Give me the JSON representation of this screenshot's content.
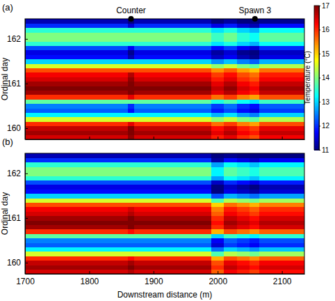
{
  "chart_data": [
    {
      "type": "heatmap",
      "title": "(a)",
      "y_label": "Ordinal day",
      "tick_labels": "y",
      "xlim": [
        1700,
        2135
      ],
      "ylim": [
        159.75,
        162.45
      ],
      "xticks": [
        1700,
        1800,
        1900,
        2000,
        2100
      ],
      "yticks": [
        160,
        161,
        162
      ],
      "annotations": [
        {
          "text": "Counter",
          "x": 1865
        },
        {
          "text": "Spawn 3",
          "x": 2058
        }
      ],
      "colorbar": {
        "label": "Temperature (°C)",
        "range": [
          11,
          17
        ],
        "ticks": [
          11,
          12,
          13,
          14,
          15,
          16,
          17
        ]
      },
      "x_edges": [
        1700,
        1860,
        1870,
        1990,
        2010,
        2030,
        2050,
        2065,
        2135
      ],
      "y_edges": [
        159.75,
        159.85,
        159.95,
        160.05,
        160.15,
        160.25,
        160.35,
        160.45,
        160.55,
        160.65,
        160.75,
        160.85,
        160.95,
        161.05,
        161.15,
        161.25,
        161.35,
        161.45,
        161.55,
        161.65,
        161.75,
        161.85,
        161.95,
        162.05,
        162.15,
        162.25,
        162.35,
        162.45
      ],
      "z": [
        [
          16.5,
          16.9,
          16.5,
          16.1,
          16.4,
          16.0,
          15.8,
          16.3
        ],
        [
          16.8,
          17.2,
          16.8,
          16.4,
          16.7,
          16.3,
          16.1,
          16.6
        ],
        [
          16.6,
          17.0,
          16.6,
          16.2,
          16.5,
          16.1,
          15.9,
          16.4
        ],
        [
          16.0,
          16.4,
          16.0,
          15.6,
          15.9,
          15.5,
          15.3,
          15.8
        ],
        [
          14.5,
          14.5,
          14.5,
          14.1,
          14.4,
          14.0,
          13.8,
          14.3
        ],
        [
          13.2,
          13.2,
          13.2,
          12.8,
          13.1,
          12.7,
          12.5,
          13.0
        ],
        [
          12.3,
          11.8,
          12.3,
          11.9,
          12.2,
          11.8,
          11.6,
          12.1
        ],
        [
          12.5,
          12.0,
          12.5,
          12.1,
          12.4,
          12.0,
          11.8,
          12.3
        ],
        [
          13.8,
          13.8,
          13.8,
          13.4,
          13.7,
          13.3,
          13.1,
          13.6
        ],
        [
          16.0,
          16.4,
          16.0,
          15.6,
          15.9,
          15.5,
          15.3,
          15.8
        ],
        [
          16.8,
          17.2,
          16.8,
          16.4,
          16.7,
          16.3,
          16.1,
          16.6
        ],
        [
          17.0,
          17.2,
          17.0,
          16.6,
          16.9,
          16.5,
          16.3,
          16.8
        ],
        [
          16.8,
          17.2,
          16.8,
          16.4,
          16.7,
          16.3,
          16.1,
          16.6
        ],
        [
          16.5,
          16.9,
          16.5,
          16.1,
          16.4,
          16.0,
          15.8,
          16.3
        ],
        [
          16.3,
          16.7,
          16.3,
          15.9,
          16.2,
          15.8,
          15.6,
          16.1
        ],
        [
          15.8,
          15.8,
          15.8,
          15.4,
          15.7,
          15.3,
          15.1,
          15.6
        ],
        [
          14.5,
          14.5,
          14.5,
          14.1,
          14.4,
          14.0,
          13.8,
          14.3
        ],
        [
          13.0,
          13.0,
          13.0,
          12.6,
          12.9,
          12.5,
          12.3,
          12.8
        ],
        [
          11.8,
          11.3,
          11.8,
          11.4,
          11.7,
          11.3,
          11.1,
          11.6
        ],
        [
          11.6,
          11.1,
          11.6,
          11.2,
          11.5,
          11.1,
          11.0,
          11.4
        ],
        [
          12.2,
          11.7,
          12.2,
          11.8,
          12.1,
          11.7,
          11.5,
          12.0
        ],
        [
          13.5,
          13.5,
          13.5,
          13.1,
          13.4,
          13.0,
          12.8,
          13.3
        ],
        [
          14.0,
          14.0,
          14.0,
          13.6,
          13.9,
          13.5,
          13.3,
          13.8
        ],
        [
          14.0,
          14.0,
          14.0,
          13.6,
          13.9,
          13.5,
          13.3,
          13.8
        ],
        [
          13.5,
          13.5,
          13.5,
          13.1,
          13.4,
          13.0,
          12.8,
          13.3
        ],
        [
          12.0,
          11.5,
          12.0,
          11.6,
          11.9,
          11.5,
          11.3,
          11.8
        ],
        [
          11.3,
          11.0,
          11.3,
          11.0,
          11.2,
          11.0,
          11.0,
          11.1
        ]
      ]
    },
    {
      "type": "heatmap",
      "title": "(b)",
      "y_label": "Ordinal day",
      "x_label": "Downstream distance (m)",
      "xlim": [
        1700,
        2135
      ],
      "ylim": [
        159.75,
        162.45
      ],
      "xticks": [
        1700,
        1800,
        1900,
        2000,
        2100
      ],
      "yticks": [
        160,
        161,
        162
      ],
      "x_edges": [
        1700,
        1860,
        1870,
        1990,
        2010,
        2030,
        2050,
        2065,
        2135
      ],
      "y_edges": [
        159.75,
        159.85,
        159.95,
        160.05,
        160.15,
        160.25,
        160.35,
        160.45,
        160.55,
        160.65,
        160.75,
        160.85,
        160.95,
        161.05,
        161.15,
        161.25,
        161.35,
        161.45,
        161.55,
        161.65,
        161.75,
        161.85,
        161.95,
        162.05,
        162.15,
        162.25,
        162.35,
        162.45
      ],
      "z": [
        [
          16.5,
          16.7,
          16.5,
          15.7,
          16.3,
          16.1,
          15.9,
          16.2
        ],
        [
          16.8,
          17.0,
          16.8,
          16.0,
          16.6,
          16.4,
          16.2,
          16.5
        ],
        [
          16.6,
          16.8,
          16.6,
          15.8,
          16.4,
          16.2,
          16.0,
          16.3
        ],
        [
          16.0,
          16.2,
          16.0,
          15.2,
          15.8,
          15.6,
          15.4,
          15.7
        ],
        [
          14.5,
          14.5,
          14.5,
          13.7,
          14.3,
          14.1,
          13.9,
          14.2
        ],
        [
          13.2,
          13.2,
          13.2,
          12.4,
          13.0,
          12.8,
          12.6,
          12.9
        ],
        [
          12.3,
          12.3,
          12.3,
          11.5,
          12.1,
          11.9,
          11.7,
          12.0
        ],
        [
          12.5,
          12.5,
          12.5,
          11.7,
          12.3,
          12.1,
          11.9,
          12.2
        ],
        [
          13.8,
          13.8,
          13.8,
          13.0,
          13.6,
          13.4,
          13.2,
          13.5
        ],
        [
          16.0,
          16.2,
          16.0,
          15.2,
          15.8,
          15.6,
          15.4,
          15.7
        ],
        [
          16.8,
          17.0,
          16.8,
          16.0,
          16.6,
          16.4,
          16.2,
          16.5
        ],
        [
          17.0,
          17.2,
          17.0,
          16.2,
          16.8,
          16.6,
          16.4,
          16.7
        ],
        [
          16.8,
          17.0,
          16.8,
          16.0,
          16.6,
          16.4,
          16.2,
          16.5
        ],
        [
          16.5,
          16.7,
          16.5,
          15.7,
          16.3,
          16.1,
          15.9,
          16.2
        ],
        [
          16.3,
          16.5,
          16.3,
          15.5,
          16.1,
          15.9,
          15.7,
          16.0
        ],
        [
          15.8,
          15.8,
          15.8,
          15.0,
          15.6,
          15.4,
          15.2,
          15.5
        ],
        [
          14.5,
          14.5,
          14.5,
          13.7,
          14.3,
          14.1,
          13.9,
          14.2
        ],
        [
          13.0,
          13.0,
          13.0,
          12.2,
          12.8,
          12.6,
          12.4,
          12.7
        ],
        [
          11.8,
          11.8,
          11.8,
          11.0,
          11.6,
          11.4,
          11.2,
          11.5
        ],
        [
          11.6,
          11.6,
          11.6,
          11.0,
          11.4,
          11.2,
          11.0,
          11.3
        ],
        [
          12.2,
          12.2,
          12.2,
          11.4,
          12.0,
          11.8,
          11.6,
          11.9
        ],
        [
          13.5,
          13.5,
          13.5,
          12.7,
          13.3,
          13.1,
          12.9,
          13.2
        ],
        [
          14.0,
          14.0,
          14.0,
          13.2,
          13.8,
          13.6,
          13.4,
          13.7
        ],
        [
          14.0,
          14.0,
          14.0,
          13.2,
          13.8,
          13.6,
          13.4,
          13.7
        ],
        [
          13.5,
          13.5,
          13.5,
          12.7,
          13.3,
          13.1,
          12.9,
          13.2
        ],
        [
          12.0,
          12.0,
          12.0,
          11.2,
          11.8,
          11.6,
          11.4,
          11.7
        ],
        [
          11.3,
          11.3,
          11.3,
          11.0,
          11.1,
          11.0,
          11.0,
          11.0
        ]
      ]
    }
  ]
}
